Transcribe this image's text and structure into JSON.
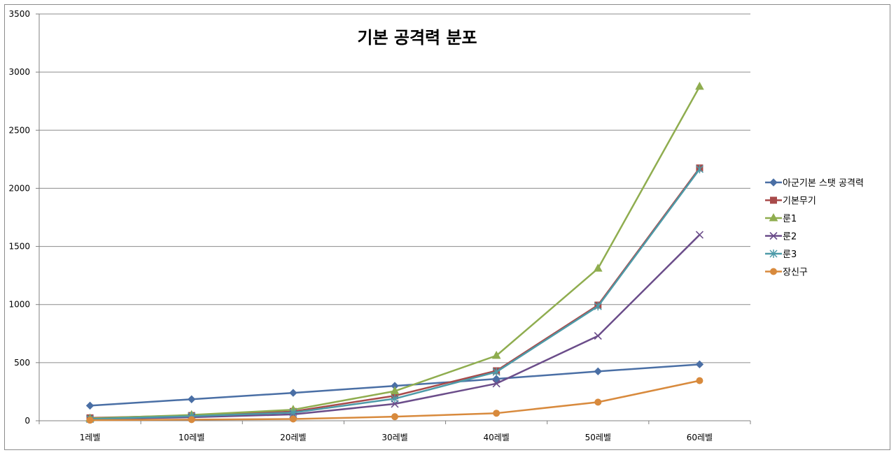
{
  "chart_data": {
    "type": "line",
    "title": "기본 공격력 분포",
    "xlabel": "",
    "ylabel": "",
    "categories": [
      "1레벨",
      "10레벨",
      "20레벨",
      "30레벨",
      "40레벨",
      "50레벨",
      "60레벨"
    ],
    "ylim": [
      0,
      3500
    ],
    "yticks": [
      0,
      500,
      1000,
      1500,
      2000,
      2500,
      3000,
      3500
    ],
    "grid": true,
    "legend_position": "right",
    "series": [
      {
        "name": "아군기본 스탯 공격력",
        "marker": "diamond",
        "color": "#4a6fa5",
        "values": [
          130,
          185,
          240,
          300,
          360,
          425,
          485
        ]
      },
      {
        "name": "기본무기",
        "marker": "square",
        "color": "#a84a4a",
        "values": [
          25,
          45,
          80,
          215,
          430,
          995,
          2175
        ]
      },
      {
        "name": "룬1",
        "marker": "triangle",
        "color": "#8fad4f",
        "values": [
          20,
          50,
          95,
          255,
          560,
          1310,
          2875
        ]
      },
      {
        "name": "룬2",
        "marker": "x",
        "color": "#6b4d8a",
        "values": [
          15,
          30,
          55,
          145,
          320,
          730,
          1600
        ]
      },
      {
        "name": "룬3",
        "marker": "star",
        "color": "#4d9aa8",
        "values": [
          15,
          40,
          70,
          190,
          420,
          985,
          2165
        ]
      },
      {
        "name": "장신구",
        "marker": "circle",
        "color": "#d88a3d",
        "values": [
          5,
          10,
          15,
          35,
          65,
          160,
          345
        ]
      }
    ]
  }
}
